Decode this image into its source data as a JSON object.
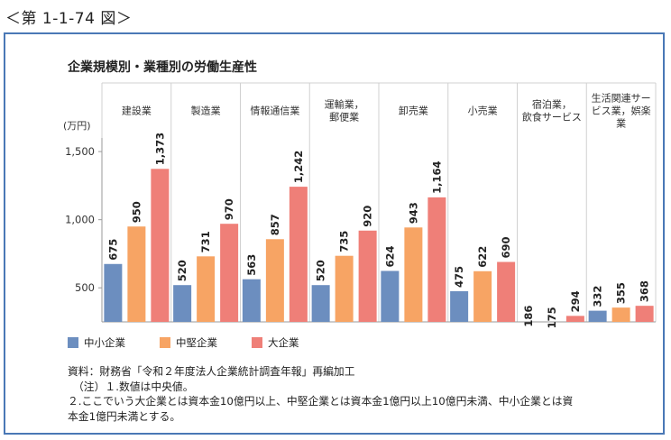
{
  "figure_label": "＜第 1-1-74 図＞",
  "chart_data": {
    "type": "bar",
    "title": "企業規模別・業種別の労働生産性",
    "ylabel": "(万円)",
    "ylim": [
      250,
      1600
    ],
    "yticks": [
      500,
      1000,
      1500
    ],
    "ytick_labels": [
      "500",
      "1,000",
      "1,500"
    ],
    "categories": [
      [
        "建設業"
      ],
      [
        "製造業"
      ],
      [
        "情報通信業"
      ],
      [
        "運輸業，",
        "郵便業"
      ],
      [
        "卸売業"
      ],
      [
        "小売業"
      ],
      [
        "宿泊業，",
        "飲食サービス"
      ],
      [
        "生活関連サー",
        "ビス業，娯楽",
        "業"
      ]
    ],
    "series": [
      {
        "name": "中小企業",
        "color": "#6c8ebf",
        "values": [
          675,
          520,
          563,
          520,
          624,
          475,
          186,
          332
        ],
        "labels": [
          "675",
          "520",
          "563",
          "520",
          "624",
          "475",
          "186",
          "332"
        ]
      },
      {
        "name": "中堅企業",
        "color": "#f7a464",
        "values": [
          950,
          731,
          857,
          735,
          943,
          622,
          175,
          355
        ],
        "labels": [
          "950",
          "731",
          "857",
          "735",
          "943",
          "622",
          "175",
          "355"
        ]
      },
      {
        "name": "大企業",
        "color": "#ef7f78",
        "values": [
          1373,
          970,
          1242,
          920,
          1164,
          690,
          294,
          368
        ],
        "labels": [
          "1,373",
          "970",
          "1,242",
          "920",
          "1,164",
          "690",
          "294",
          "368"
        ]
      }
    ]
  },
  "notes": {
    "source": "資料：財務省「令和２年度法人企業統計調査年報」再編加工",
    "note1": "（注）１.数値は中央値。",
    "note2": "２.ここでいう大企業とは資本金10億円以上、中堅企業とは資本金1億円以上10億円未満、中小企業とは資",
    "note3": "本金1億円未満とする。"
  }
}
